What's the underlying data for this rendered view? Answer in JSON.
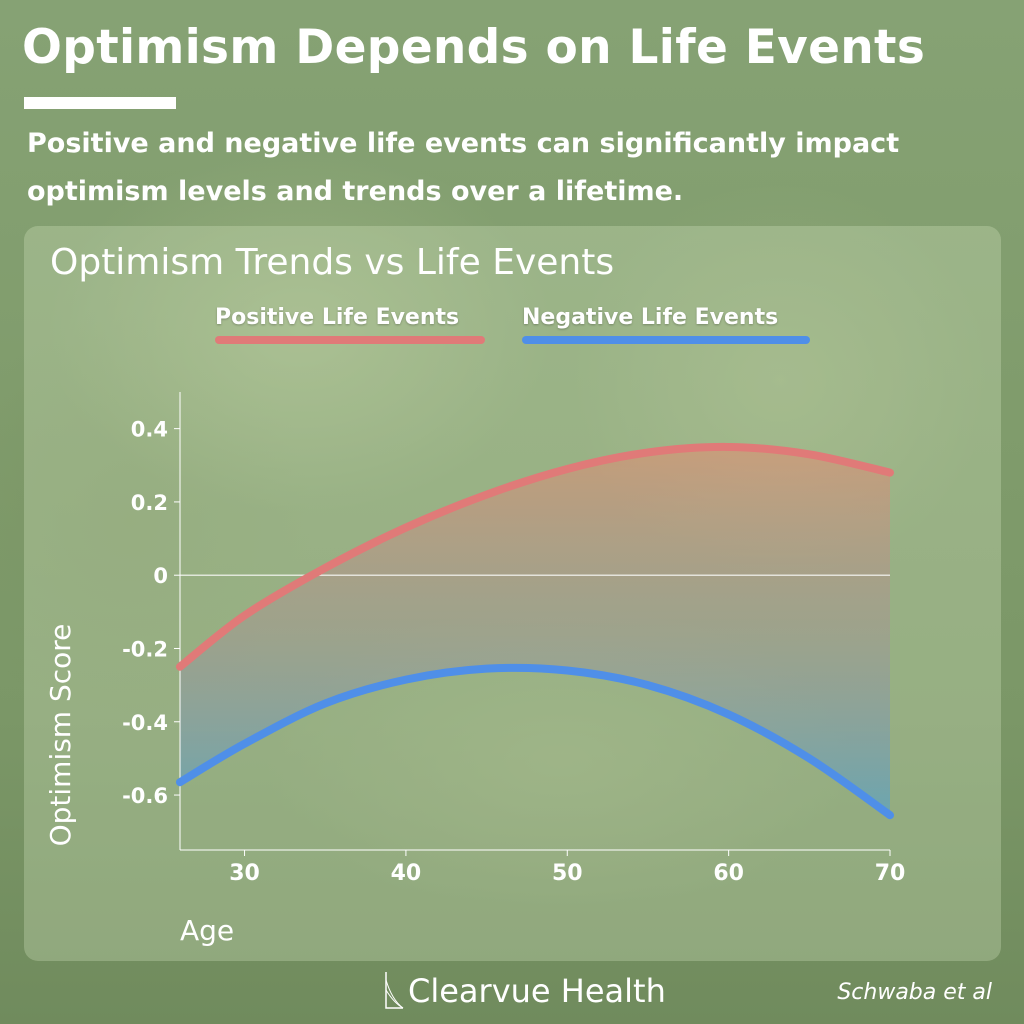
{
  "header": {
    "title": "Optimism Depends on Life Events",
    "subtitle": "Positive and negative life events can significantly impact optimism levels and trends over a lifetime."
  },
  "chart_data": {
    "type": "line",
    "title": "Optimism Trends vs Life Events",
    "xlabel": "Age",
    "ylabel": "Optimism Score",
    "xlim": [
      26,
      70
    ],
    "ylim": [
      -0.75,
      0.5
    ],
    "xticks": [
      30,
      40,
      50,
      60,
      70
    ],
    "yticks": [
      0.4,
      0.2,
      0,
      -0.2,
      -0.4,
      -0.6
    ],
    "ytick_labels": [
      "0.4",
      "0.2",
      "0",
      "-0.2",
      "-0.4",
      "-0.6"
    ],
    "grid": false,
    "reference_line_y": 0,
    "shaded_between_series": true,
    "legend_position": "top",
    "series": [
      {
        "name": "Positive Life Events",
        "color": "#e07a78",
        "x": [
          26,
          30,
          35,
          40,
          45,
          50,
          55,
          60,
          65,
          70
        ],
        "y": [
          -0.25,
          -0.11,
          0.02,
          0.13,
          0.22,
          0.29,
          0.335,
          0.35,
          0.33,
          0.28
        ]
      },
      {
        "name": "Negative Life Events",
        "color": "#4f8fe8",
        "x": [
          26,
          30,
          35,
          40,
          45,
          50,
          55,
          60,
          65,
          70
        ],
        "y": [
          -0.565,
          -0.46,
          -0.35,
          -0.285,
          -0.255,
          -0.26,
          -0.3,
          -0.38,
          -0.5,
          -0.655
        ]
      }
    ]
  },
  "footer": {
    "brand": "Clearvue Health",
    "credit": "Schwaba et al"
  }
}
